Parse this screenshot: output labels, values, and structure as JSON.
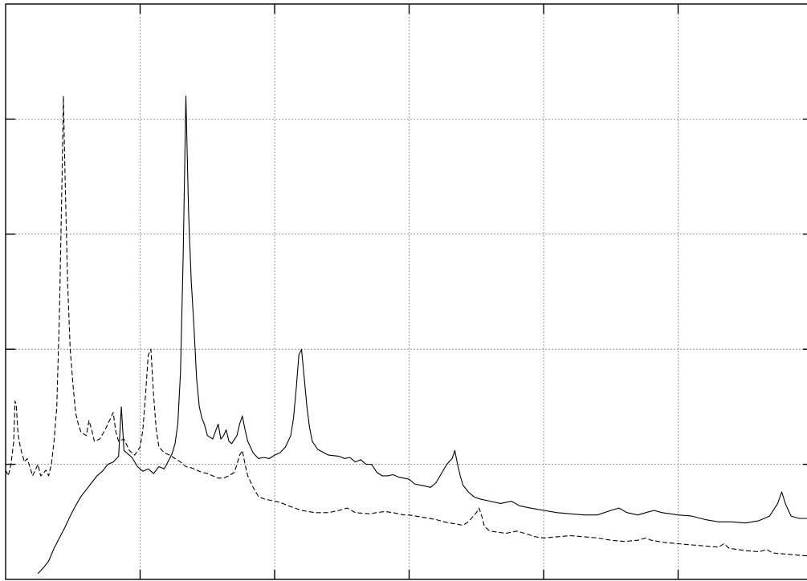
{
  "chart_data": {
    "type": "line",
    "title": "",
    "xlabel": "",
    "ylabel": "",
    "xlim": [
      0,
      6
    ],
    "ylim": [
      0,
      5
    ],
    "x_grid_values": [
      1,
      2,
      3,
      4,
      5
    ],
    "y_grid_values": [
      1,
      2,
      3,
      4
    ],
    "grid": true,
    "legend": "none",
    "series": [
      {
        "style": "solid",
        "color": "#000000",
        "points": [
          [
            0.24,
            0.05
          ],
          [
            0.28,
            0.1
          ],
          [
            0.32,
            0.16
          ],
          [
            0.36,
            0.27
          ],
          [
            0.4,
            0.36
          ],
          [
            0.44,
            0.45
          ],
          [
            0.48,
            0.55
          ],
          [
            0.52,
            0.64
          ],
          [
            0.56,
            0.72
          ],
          [
            0.6,
            0.78
          ],
          [
            0.64,
            0.84
          ],
          [
            0.68,
            0.9
          ],
          [
            0.72,
            0.94
          ],
          [
            0.76,
            1.0
          ],
          [
            0.8,
            1.02
          ],
          [
            0.84,
            1.07
          ],
          [
            0.86,
            1.5
          ],
          [
            0.88,
            1.12
          ],
          [
            0.9,
            1.1
          ],
          [
            0.94,
            1.06
          ],
          [
            0.98,
            0.98
          ],
          [
            1.02,
            0.94
          ],
          [
            1.06,
            0.96
          ],
          [
            1.1,
            0.92
          ],
          [
            1.14,
            0.98
          ],
          [
            1.18,
            0.96
          ],
          [
            1.22,
            1.05
          ],
          [
            1.24,
            1.1
          ],
          [
            1.26,
            1.18
          ],
          [
            1.28,
            1.35
          ],
          [
            1.3,
            1.8
          ],
          [
            1.32,
            2.8
          ],
          [
            1.34,
            4.2
          ],
          [
            1.36,
            3.2
          ],
          [
            1.38,
            2.6
          ],
          [
            1.4,
            2.2
          ],
          [
            1.42,
            1.75
          ],
          [
            1.44,
            1.5
          ],
          [
            1.46,
            1.4
          ],
          [
            1.48,
            1.34
          ],
          [
            1.5,
            1.25
          ],
          [
            1.54,
            1.22
          ],
          [
            1.58,
            1.35
          ],
          [
            1.6,
            1.22
          ],
          [
            1.62,
            1.25
          ],
          [
            1.64,
            1.3
          ],
          [
            1.66,
            1.2
          ],
          [
            1.68,
            1.18
          ],
          [
            1.72,
            1.25
          ],
          [
            1.74,
            1.35
          ],
          [
            1.76,
            1.42
          ],
          [
            1.78,
            1.3
          ],
          [
            1.8,
            1.2
          ],
          [
            1.84,
            1.1
          ],
          [
            1.88,
            1.05
          ],
          [
            1.92,
            1.06
          ],
          [
            1.96,
            1.05
          ],
          [
            2.0,
            1.08
          ],
          [
            2.04,
            1.1
          ],
          [
            2.08,
            1.15
          ],
          [
            2.12,
            1.25
          ],
          [
            2.14,
            1.4
          ],
          [
            2.16,
            1.65
          ],
          [
            2.18,
            1.95
          ],
          [
            2.2,
            2.0
          ],
          [
            2.22,
            1.75
          ],
          [
            2.24,
            1.5
          ],
          [
            2.26,
            1.32
          ],
          [
            2.28,
            1.2
          ],
          [
            2.32,
            1.13
          ],
          [
            2.4,
            1.08
          ],
          [
            2.48,
            1.07
          ],
          [
            2.52,
            1.05
          ],
          [
            2.56,
            1.06
          ],
          [
            2.6,
            1.02
          ],
          [
            2.64,
            1.04
          ],
          [
            2.68,
            1.0
          ],
          [
            2.72,
            1.0
          ],
          [
            2.76,
            0.93
          ],
          [
            2.8,
            0.9
          ],
          [
            2.84,
            0.9
          ],
          [
            2.88,
            0.91
          ],
          [
            2.92,
            0.89
          ],
          [
            2.96,
            0.88
          ],
          [
            3.0,
            0.87
          ],
          [
            3.04,
            0.83
          ],
          [
            3.08,
            0.82
          ],
          [
            3.12,
            0.81
          ],
          [
            3.16,
            0.8
          ],
          [
            3.2,
            0.84
          ],
          [
            3.24,
            0.92
          ],
          [
            3.28,
            1.0
          ],
          [
            3.32,
            1.05
          ],
          [
            3.34,
            1.12
          ],
          [
            3.36,
            1.0
          ],
          [
            3.38,
            0.9
          ],
          [
            3.4,
            0.82
          ],
          [
            3.44,
            0.76
          ],
          [
            3.48,
            0.72
          ],
          [
            3.52,
            0.7
          ],
          [
            3.6,
            0.68
          ],
          [
            3.68,
            0.66
          ],
          [
            3.76,
            0.68
          ],
          [
            3.82,
            0.64
          ],
          [
            3.9,
            0.62
          ],
          [
            4.0,
            0.6
          ],
          [
            4.1,
            0.58
          ],
          [
            4.2,
            0.57
          ],
          [
            4.3,
            0.56
          ],
          [
            4.4,
            0.56
          ],
          [
            4.5,
            0.6
          ],
          [
            4.56,
            0.62
          ],
          [
            4.62,
            0.58
          ],
          [
            4.7,
            0.56
          ],
          [
            4.76,
            0.58
          ],
          [
            4.82,
            0.6
          ],
          [
            4.88,
            0.58
          ],
          [
            5.0,
            0.56
          ],
          [
            5.1,
            0.55
          ],
          [
            5.2,
            0.52
          ],
          [
            5.3,
            0.5
          ],
          [
            5.4,
            0.5
          ],
          [
            5.5,
            0.49
          ],
          [
            5.6,
            0.51
          ],
          [
            5.68,
            0.55
          ],
          [
            5.74,
            0.66
          ],
          [
            5.77,
            0.76
          ],
          [
            5.8,
            0.65
          ],
          [
            5.84,
            0.55
          ],
          [
            5.9,
            0.53
          ],
          [
            5.96,
            0.53
          ],
          [
            6.0,
            0.52
          ]
        ]
      },
      {
        "style": "dashed",
        "color": "#000000",
        "points": [
          [
            0.0,
            0.95
          ],
          [
            0.02,
            0.9
          ],
          [
            0.04,
            1.0
          ],
          [
            0.06,
            1.2
          ],
          [
            0.07,
            1.55
          ],
          [
            0.08,
            1.5
          ],
          [
            0.09,
            1.3
          ],
          [
            0.1,
            1.2
          ],
          [
            0.12,
            1.1
          ],
          [
            0.14,
            1.02
          ],
          [
            0.16,
            1.05
          ],
          [
            0.18,
            0.98
          ],
          [
            0.2,
            0.9
          ],
          [
            0.22,
            0.95
          ],
          [
            0.24,
            1.0
          ],
          [
            0.26,
            0.9
          ],
          [
            0.28,
            0.92
          ],
          [
            0.3,
            0.95
          ],
          [
            0.32,
            0.9
          ],
          [
            0.34,
            1.0
          ],
          [
            0.36,
            1.2
          ],
          [
            0.38,
            1.5
          ],
          [
            0.4,
            2.3
          ],
          [
            0.42,
            3.5
          ],
          [
            0.43,
            4.2
          ],
          [
            0.44,
            3.6
          ],
          [
            0.46,
            2.6
          ],
          [
            0.48,
            2.0
          ],
          [
            0.5,
            1.7
          ],
          [
            0.52,
            1.45
          ],
          [
            0.54,
            1.35
          ],
          [
            0.56,
            1.28
          ],
          [
            0.6,
            1.25
          ],
          [
            0.62,
            1.38
          ],
          [
            0.64,
            1.3
          ],
          [
            0.66,
            1.2
          ],
          [
            0.7,
            1.22
          ],
          [
            0.74,
            1.3
          ],
          [
            0.78,
            1.4
          ],
          [
            0.8,
            1.45
          ],
          [
            0.82,
            1.28
          ],
          [
            0.84,
            1.2
          ],
          [
            0.88,
            1.22
          ],
          [
            0.92,
            1.12
          ],
          [
            0.96,
            1.08
          ],
          [
            1.0,
            1.15
          ],
          [
            1.02,
            1.3
          ],
          [
            1.04,
            1.6
          ],
          [
            1.06,
            1.95
          ],
          [
            1.08,
            2.0
          ],
          [
            1.1,
            1.6
          ],
          [
            1.12,
            1.3
          ],
          [
            1.14,
            1.15
          ],
          [
            1.18,
            1.1
          ],
          [
            1.22,
            1.08
          ],
          [
            1.26,
            1.05
          ],
          [
            1.3,
            1.02
          ],
          [
            1.34,
            0.98
          ],
          [
            1.38,
            0.97
          ],
          [
            1.42,
            0.95
          ],
          [
            1.46,
            0.93
          ],
          [
            1.5,
            0.92
          ],
          [
            1.54,
            0.9
          ],
          [
            1.58,
            0.88
          ],
          [
            1.62,
            0.88
          ],
          [
            1.66,
            0.9
          ],
          [
            1.7,
            0.93
          ],
          [
            1.72,
            1.0
          ],
          [
            1.74,
            1.08
          ],
          [
            1.76,
            1.12
          ],
          [
            1.78,
            1.0
          ],
          [
            1.8,
            0.9
          ],
          [
            1.84,
            0.8
          ],
          [
            1.88,
            0.72
          ],
          [
            1.92,
            0.7
          ],
          [
            1.96,
            0.69
          ],
          [
            2.0,
            0.68
          ],
          [
            2.04,
            0.67
          ],
          [
            2.1,
            0.64
          ],
          [
            2.2,
            0.6
          ],
          [
            2.3,
            0.58
          ],
          [
            2.4,
            0.58
          ],
          [
            2.48,
            0.6
          ],
          [
            2.54,
            0.62
          ],
          [
            2.6,
            0.58
          ],
          [
            2.7,
            0.57
          ],
          [
            2.76,
            0.58
          ],
          [
            2.82,
            0.59
          ],
          [
            2.88,
            0.58
          ],
          [
            2.96,
            0.56
          ],
          [
            3.0,
            0.56
          ],
          [
            3.1,
            0.54
          ],
          [
            3.2,
            0.52
          ],
          [
            3.26,
            0.5
          ],
          [
            3.3,
            0.49
          ],
          [
            3.36,
            0.48
          ],
          [
            3.4,
            0.47
          ],
          [
            3.44,
            0.5
          ],
          [
            3.5,
            0.58
          ],
          [
            3.52,
            0.62
          ],
          [
            3.54,
            0.55
          ],
          [
            3.56,
            0.46
          ],
          [
            3.6,
            0.42
          ],
          [
            3.66,
            0.41
          ],
          [
            3.72,
            0.4
          ],
          [
            3.8,
            0.42
          ],
          [
            3.86,
            0.4
          ],
          [
            3.94,
            0.37
          ],
          [
            4.0,
            0.36
          ],
          [
            4.1,
            0.37
          ],
          [
            4.2,
            0.38
          ],
          [
            4.3,
            0.37
          ],
          [
            4.4,
            0.36
          ],
          [
            4.5,
            0.34
          ],
          [
            4.6,
            0.33
          ],
          [
            4.7,
            0.34
          ],
          [
            4.76,
            0.36
          ],
          [
            4.8,
            0.34
          ],
          [
            4.9,
            0.32
          ],
          [
            5.0,
            0.31
          ],
          [
            5.1,
            0.3
          ],
          [
            5.2,
            0.29
          ],
          [
            5.3,
            0.28
          ],
          [
            5.34,
            0.31
          ],
          [
            5.38,
            0.27
          ],
          [
            5.5,
            0.25
          ],
          [
            5.6,
            0.24
          ],
          [
            5.66,
            0.26
          ],
          [
            5.7,
            0.23
          ],
          [
            5.8,
            0.22
          ],
          [
            5.9,
            0.21
          ],
          [
            6.0,
            0.2
          ]
        ]
      }
    ]
  }
}
